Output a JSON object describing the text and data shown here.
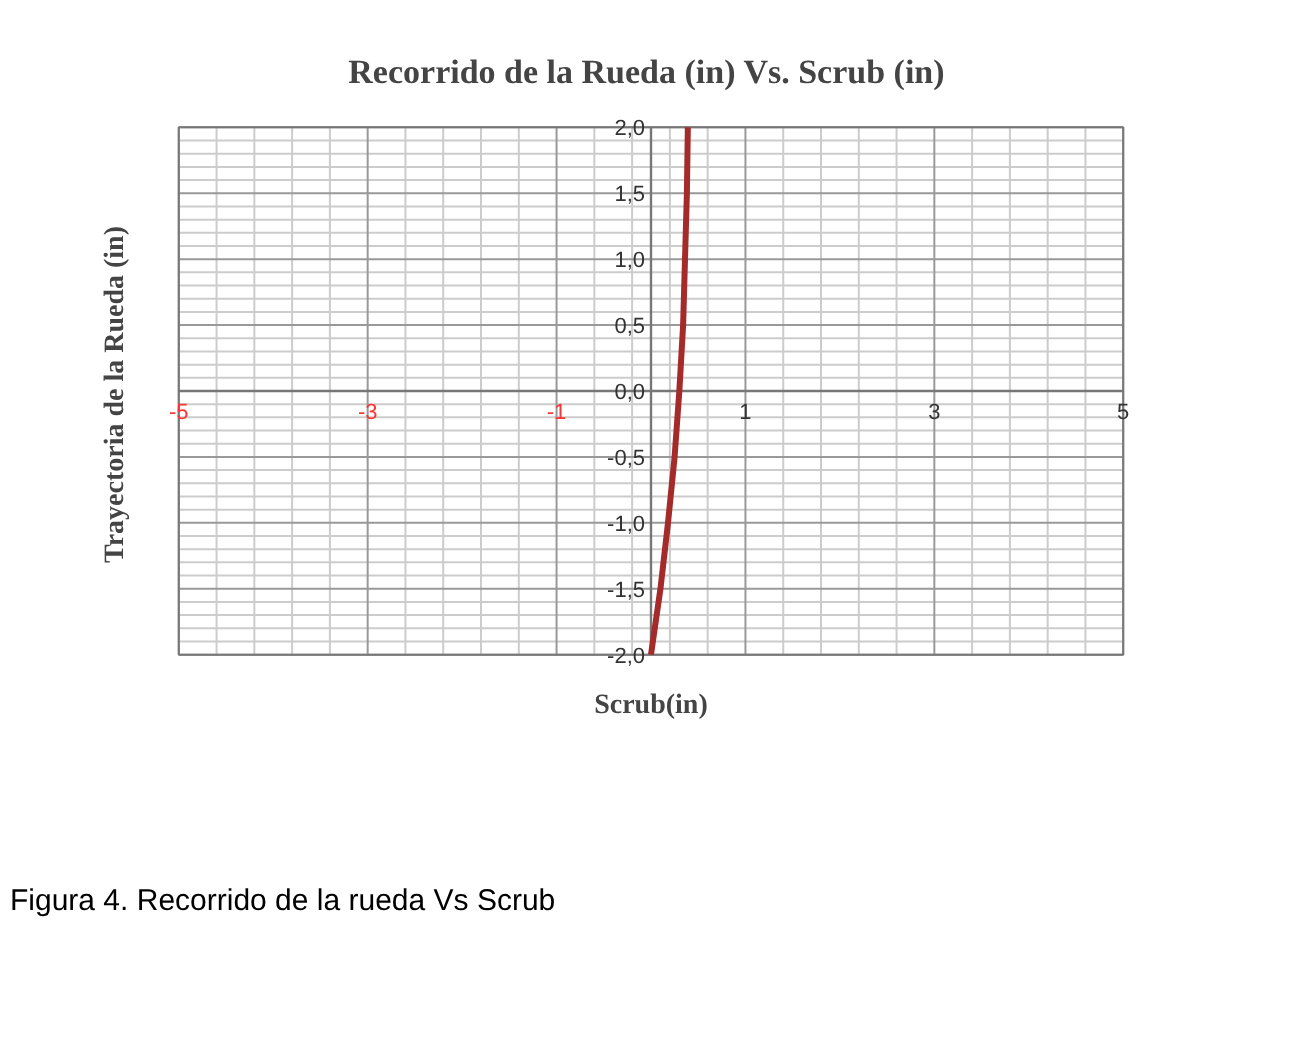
{
  "chart_data": {
    "type": "line",
    "title": "Recorrido de  la Rueda (in) Vs. Scrub (in)",
    "xlabel": "Scrub(in)",
    "ylabel": "Trayectoria  de la Rueda (in)",
    "x": [
      0,
      0.1,
      0.18,
      0.25,
      0.3,
      0.34,
      0.36,
      0.38,
      0.39
    ],
    "series": [
      {
        "color": "#a52a2a",
        "values": [
          -2,
          -1.5,
          -1,
          -0.5,
          0,
          0.5,
          1,
          1.5,
          2
        ]
      }
    ],
    "xlim": [
      -5,
      5
    ],
    "ylim": [
      -2,
      2
    ],
    "xticks": [
      -5,
      -3,
      -1,
      1,
      3,
      5
    ],
    "yticks": [
      {
        "value": -2,
        "label": "-2,0"
      },
      {
        "value": -1.5,
        "label": "-1,5"
      },
      {
        "value": -1,
        "label": "-1,0"
      },
      {
        "value": -0.5,
        "label": "-0,5"
      },
      {
        "value": 0,
        "label": "0,0"
      },
      {
        "value": 0.5,
        "label": "0,5"
      },
      {
        "value": 1,
        "label": "1,0"
      },
      {
        "value": 1.5,
        "label": "1,5"
      },
      {
        "value": 2,
        "label": "2,0"
      }
    ],
    "grid": true,
    "marker": "none",
    "line_style": "solid",
    "annotations": [
      "Figura 4. Recorrido de la rueda Vs Scrub"
    ]
  }
}
